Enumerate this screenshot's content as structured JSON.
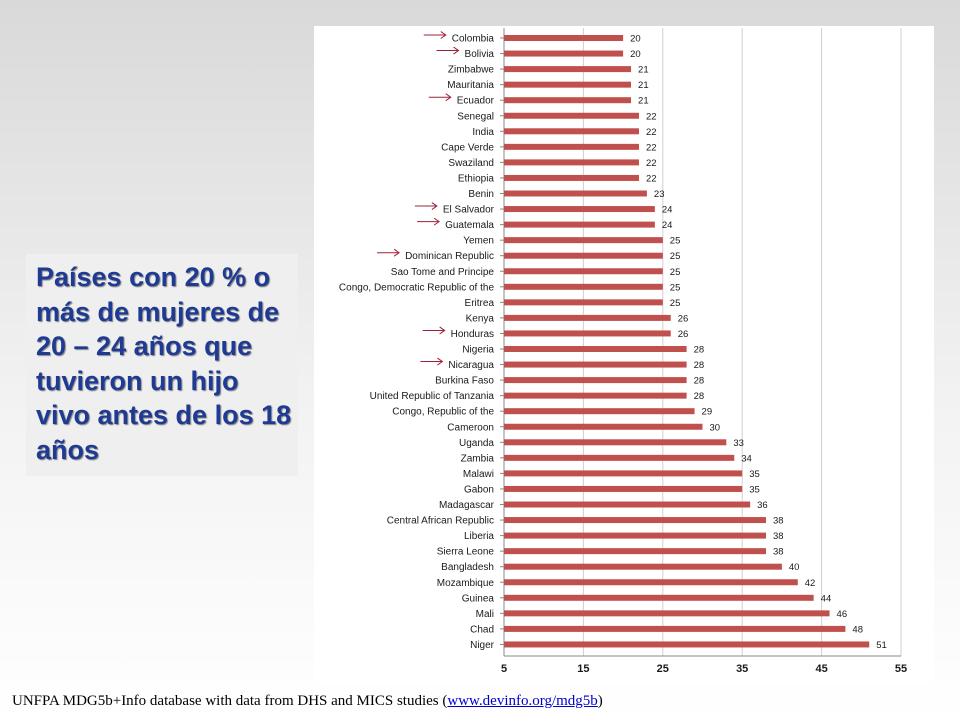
{
  "caption": "Países con 20 % o más de mujeres de 20 – 24 años que tuvieron un hijo vivo antes de los 18 años",
  "source": {
    "text_before": "UNFPA MDG5b+Info database with data from DHS and MICS studies (",
    "link_text": "www.devinfo.org/mdg5b",
    "text_after": ")"
  },
  "colors": {
    "bar": "#c0504d",
    "arrow": "#a0203a",
    "caption": "#1f3a93",
    "grid": "#d0d0d0"
  },
  "chart_data": {
    "type": "bar",
    "orientation": "horizontal",
    "categories": [
      "Colombia",
      "Bolivia",
      "Zimbabwe",
      "Mauritania",
      "Ecuador",
      "Senegal",
      "India",
      "Cape Verde",
      "Swaziland",
      "Ethiopia",
      "Benin",
      "El Salvador",
      "Guatemala",
      "Yemen",
      "Dominican Republic",
      "Sao Tome and Principe",
      "Congo, Democratic Republic of the",
      "Eritrea",
      "Kenya",
      "Honduras",
      "Nigeria",
      "Nicaragua",
      "Burkina Faso",
      "United Republic of Tanzania",
      "Congo, Republic of the",
      "Cameroon",
      "Uganda",
      "Zambia",
      "Malawi",
      "Gabon",
      "Madagascar",
      "Central African Republic",
      "Liberia",
      "Sierra Leone",
      "Bangladesh",
      "Mozambique",
      "Guinea",
      "Mali",
      "Chad",
      "Niger"
    ],
    "values": [
      20,
      20,
      21,
      21,
      21,
      22,
      22,
      22,
      22,
      22,
      23,
      24,
      24,
      25,
      25,
      25,
      25,
      25,
      26,
      26,
      28,
      28,
      28,
      28,
      29,
      30,
      33,
      34,
      35,
      35,
      36,
      38,
      38,
      38,
      40,
      42,
      44,
      46,
      48,
      51
    ],
    "highlighted": [
      "Colombia",
      "Bolivia",
      "Ecuador",
      "El Salvador",
      "Guatemala",
      "Dominican Republic",
      "Honduras",
      "Nicaragua"
    ],
    "xlim": [
      5,
      55
    ],
    "xticks": [
      5,
      15,
      25,
      35,
      45,
      55
    ],
    "grid": true,
    "title": "",
    "xlabel": "",
    "ylabel": ""
  }
}
